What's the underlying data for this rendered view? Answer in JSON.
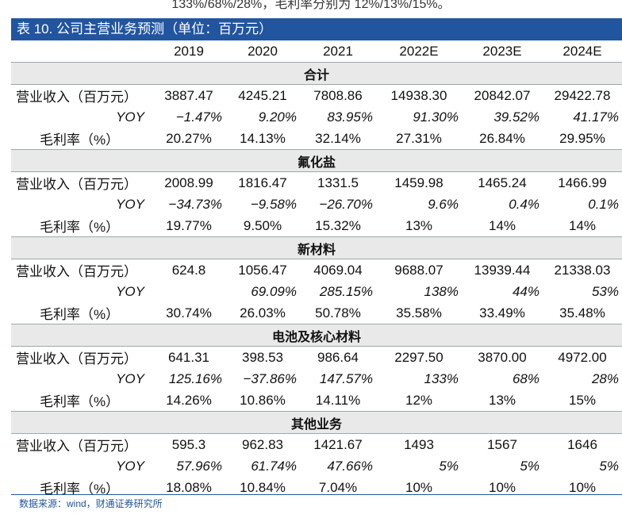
{
  "intro_text": "133%/68%/28%，毛利率分别为 12%/13%/15%。",
  "table_title": "表 10. 公司主营业务预测（单位：百万元）",
  "years": [
    "2019",
    "2020",
    "2021",
    "2022E",
    "2023E",
    "2024E"
  ],
  "segments": [
    {
      "name": "合计",
      "rows": [
        {
          "label": "营业收入（百万元）",
          "kind": "rev",
          "values": [
            "3887.47",
            "4245.21",
            "7808.86",
            "14938.30",
            "20842.07",
            "29422.78"
          ]
        },
        {
          "label": "YOY",
          "kind": "yoy",
          "values": [
            "−1.47%",
            "9.20%",
            "83.95%",
            "91.30%",
            "39.52%",
            "41.17%"
          ]
        },
        {
          "label": "毛利率（%）",
          "kind": "gm",
          "values": [
            "20.27%",
            "14.13%",
            "32.14%",
            "27.31%",
            "26.84%",
            "29.95%"
          ]
        }
      ]
    },
    {
      "name": "氟化盐",
      "rows": [
        {
          "label": "营业收入（百万元）",
          "kind": "rev",
          "values": [
            "2008.99",
            "1816.47",
            "1331.5",
            "1459.98",
            "1465.24",
            "1466.99"
          ]
        },
        {
          "label": "YOY",
          "kind": "yoy",
          "values": [
            "−34.73%",
            "−9.58%",
            "−26.70%",
            "9.6%",
            "0.4%",
            "0.1%"
          ]
        },
        {
          "label": "毛利率（%）",
          "kind": "gm",
          "values": [
            "19.77%",
            "9.50%",
            "15.32%",
            "13%",
            "14%",
            "14%"
          ]
        }
      ]
    },
    {
      "name": "新材料",
      "rows": [
        {
          "label": "营业收入（百万元）",
          "kind": "rev",
          "values": [
            "624.8",
            "1056.47",
            "4069.04",
            "9688.07",
            "13939.44",
            "21338.03"
          ]
        },
        {
          "label": "YOY",
          "kind": "yoy",
          "values": [
            "",
            "69.09%",
            "285.15%",
            "138%",
            "44%",
            "53%"
          ]
        },
        {
          "label": "毛利率（%）",
          "kind": "gm",
          "values": [
            "30.74%",
            "26.03%",
            "50.78%",
            "35.58%",
            "33.49%",
            "35.48%"
          ]
        }
      ]
    },
    {
      "name": "电池及核心材料",
      "rows": [
        {
          "label": "营业收入（百万元）",
          "kind": "rev",
          "values": [
            "641.31",
            "398.53",
            "986.64",
            "2297.50",
            "3870.00",
            "4972.00"
          ]
        },
        {
          "label": "YOY",
          "kind": "yoy",
          "values": [
            "125.16%",
            "−37.86%",
            "147.57%",
            "133%",
            "68%",
            "28%"
          ]
        },
        {
          "label": "毛利率（%）",
          "kind": "gm",
          "values": [
            "14.26%",
            "10.86%",
            "14.11%",
            "12%",
            "13%",
            "15%"
          ]
        }
      ]
    },
    {
      "name": "其他业务",
      "rows": [
        {
          "label": "营业收入（百万元）",
          "kind": "rev",
          "values": [
            "595.3",
            "962.83",
            "1421.67",
            "1493",
            "1567",
            "1646"
          ]
        },
        {
          "label": "YOY",
          "kind": "yoy",
          "values": [
            "57.96%",
            "61.74%",
            "47.66%",
            "5%",
            "5%",
            "5%"
          ]
        },
        {
          "label": "毛利率（%）",
          "kind": "gm",
          "values": [
            "18.08%",
            "10.84%",
            "7.04%",
            "10%",
            "10%",
            "10%"
          ]
        }
      ]
    }
  ],
  "source": "数据来源：wind，财通证券研究所"
}
